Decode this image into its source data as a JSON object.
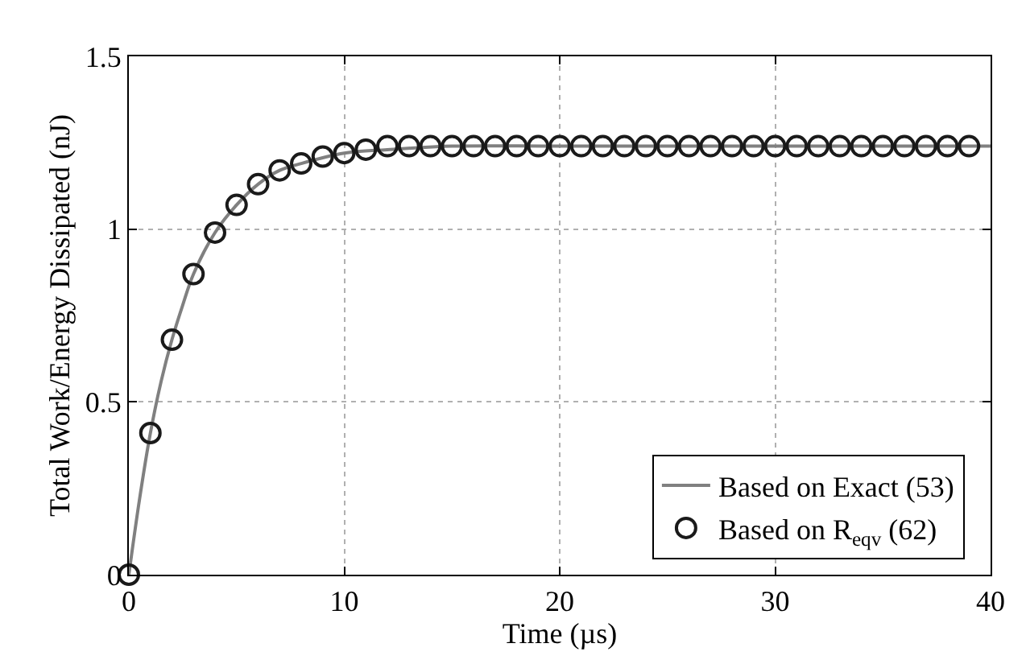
{
  "chart_data": {
    "type": "line",
    "xlabel": "Time (µs)",
    "ylabel": "Total Work/Energy Dissipated (nJ)",
    "xlim": [
      0,
      40
    ],
    "xticks": [
      0,
      10,
      20,
      30,
      40
    ],
    "ylim": [
      0,
      1.5
    ],
    "yticks": [
      0,
      0.5,
      1,
      1.5
    ],
    "grid": true,
    "legend": "bottom right",
    "series": [
      {
        "name": "Based on Exact (53)",
        "color": "#808080",
        "marker": "none",
        "line_style": "solid",
        "x": [
          0,
          0.5,
          1,
          1.5,
          2,
          2.5,
          3,
          4,
          5,
          6,
          7,
          8,
          10,
          12,
          15,
          20,
          30,
          40
        ],
        "values": [
          0,
          0.22,
          0.41,
          0.56,
          0.68,
          0.78,
          0.87,
          0.99,
          1.07,
          1.13,
          1.17,
          1.19,
          1.22,
          1.23,
          1.24,
          1.24,
          1.24,
          1.24
        ]
      },
      {
        "name": "Based on R$_{eqv}$ (62)",
        "type": "scatter",
        "color": "#1a1a1a",
        "marker": "circle",
        "x": [
          0,
          1,
          2,
          3,
          4,
          5,
          6,
          7,
          8,
          9,
          10,
          11,
          12,
          13,
          14,
          15,
          16,
          17,
          18,
          19,
          20,
          21,
          22,
          23,
          24,
          25,
          26,
          27,
          28,
          29,
          30,
          31,
          32,
          33,
          34,
          35,
          36,
          37,
          38,
          39
        ],
        "values": [
          0,
          0.41,
          0.68,
          0.87,
          0.99,
          1.07,
          1.13,
          1.17,
          1.19,
          1.21,
          1.22,
          1.23,
          1.24,
          1.24,
          1.24,
          1.24,
          1.24,
          1.24,
          1.24,
          1.24,
          1.24,
          1.24,
          1.24,
          1.24,
          1.24,
          1.24,
          1.24,
          1.24,
          1.24,
          1.24,
          1.24,
          1.24,
          1.24,
          1.24,
          1.24,
          1.24,
          1.24,
          1.24,
          1.24,
          1.24
        ]
      }
    ]
  }
}
